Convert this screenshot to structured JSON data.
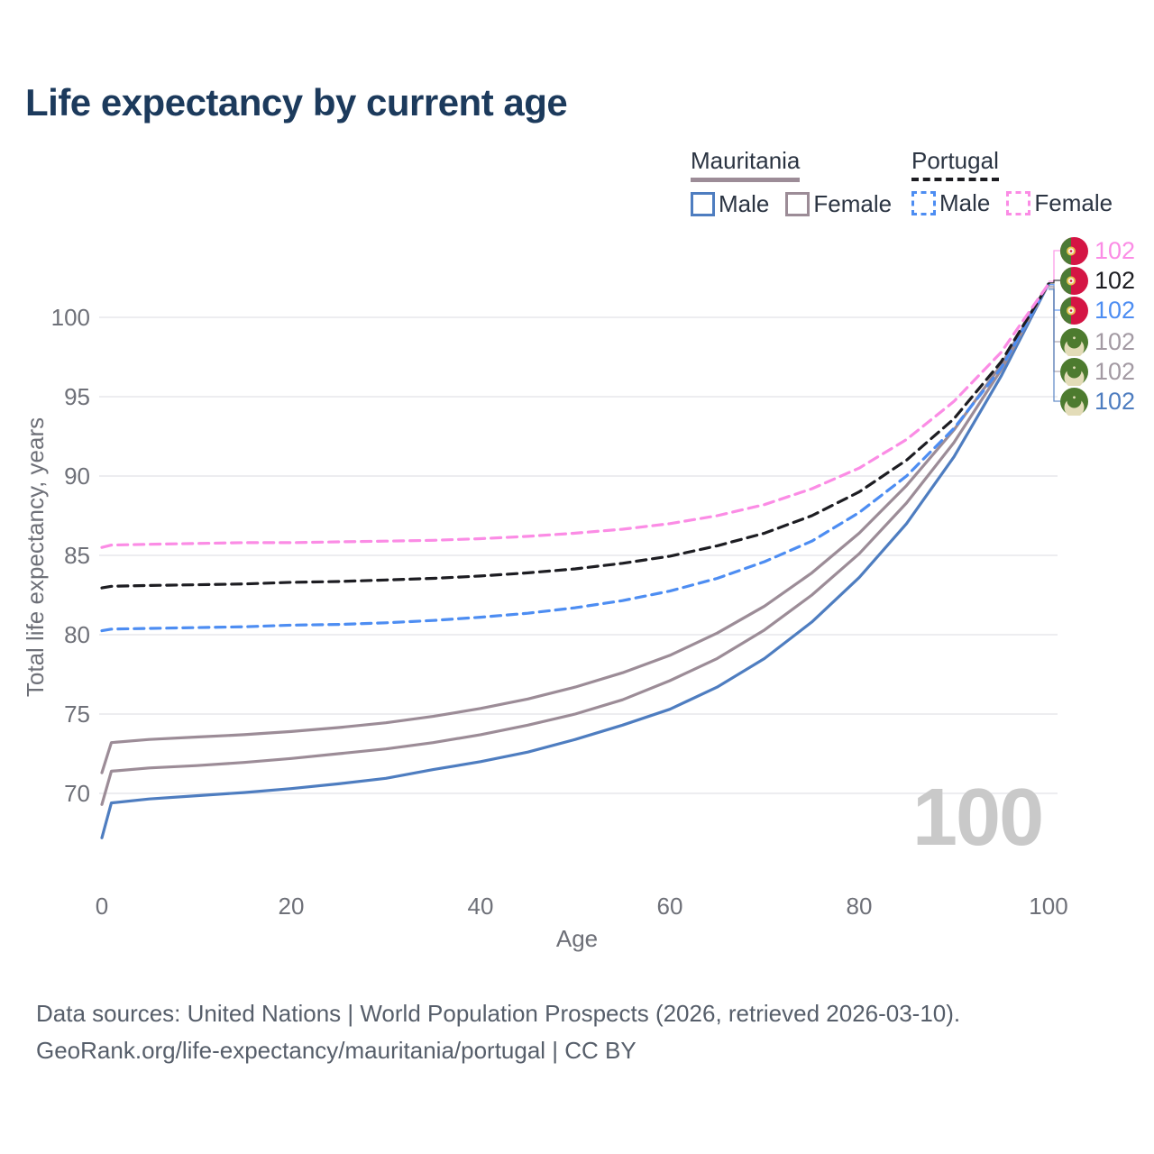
{
  "title": "Life expectancy by current age",
  "hover_watermark": "100",
  "legend": {
    "groups": [
      {
        "country": "Mauritania",
        "line_style": "solid",
        "underline_color": "#9c8c97",
        "items": [
          {
            "label": "Male",
            "color": "#4e7dc0"
          },
          {
            "label": "Female",
            "color": "#9c8c97"
          }
        ]
      },
      {
        "country": "Portugal",
        "line_style": "dashed",
        "underline_color": "#1d1d22",
        "items": [
          {
            "label": "Male",
            "color": "#4d8df2"
          },
          {
            "label": "Female",
            "color": "#fb8ce5"
          }
        ]
      }
    ]
  },
  "chart_data": {
    "type": "line",
    "title": "Life expectancy by current age",
    "xlabel": "Age",
    "ylabel": "Total life expectancy, years",
    "xlim": [
      0,
      100
    ],
    "ylim": [
      66,
      103
    ],
    "xticks": [
      0,
      20,
      40,
      60,
      80,
      100
    ],
    "yticks": [
      70,
      75,
      80,
      85,
      90,
      95,
      100
    ],
    "grid": "horizontal",
    "legend_position": "top-right",
    "x_ages": [
      0,
      1,
      5,
      10,
      15,
      20,
      25,
      30,
      35,
      40,
      45,
      50,
      55,
      60,
      65,
      70,
      75,
      80,
      85,
      90,
      95,
      100
    ],
    "series": [
      {
        "name": "Mauritania Male",
        "country": "Mauritania",
        "sex": "Male",
        "style": "solid",
        "color": "#4e7dc0",
        "end_value": 102,
        "values": [
          67.2,
          69.4,
          69.65,
          69.85,
          70.05,
          70.3,
          70.6,
          70.95,
          71.5,
          72.0,
          72.6,
          73.4,
          74.3,
          75.3,
          76.7,
          78.5,
          80.8,
          83.6,
          87.0,
          91.2,
          96.3,
          102.1
        ]
      },
      {
        "name": "Mauritania Both sexes",
        "country": "Mauritania",
        "sex": "Both sexes",
        "style": "solid",
        "color": "#9c8c97",
        "end_value": 102,
        "values": [
          69.3,
          71.4,
          71.6,
          71.75,
          71.95,
          72.2,
          72.5,
          72.8,
          73.2,
          73.7,
          74.3,
          75.0,
          75.9,
          77.1,
          78.5,
          80.3,
          82.5,
          85.1,
          88.3,
          92.1,
          96.7,
          102.1
        ]
      },
      {
        "name": "Mauritania Female",
        "country": "Mauritania",
        "sex": "Female",
        "style": "solid",
        "color": "#9c8c97",
        "end_value": 102,
        "values": [
          71.3,
          73.2,
          73.4,
          73.55,
          73.7,
          73.9,
          74.15,
          74.45,
          74.85,
          75.35,
          75.95,
          76.7,
          77.6,
          78.7,
          80.1,
          81.8,
          83.9,
          86.4,
          89.4,
          92.9,
          97.0,
          102.1
        ]
      },
      {
        "name": "Portugal Male",
        "country": "Portugal",
        "sex": "Male",
        "style": "dashed",
        "color": "#4d8df2",
        "end_value": 102,
        "values": [
          80.25,
          80.35,
          80.4,
          80.45,
          80.5,
          80.6,
          80.65,
          80.75,
          80.9,
          81.1,
          81.35,
          81.7,
          82.15,
          82.75,
          83.55,
          84.6,
          85.9,
          87.7,
          90.0,
          93.0,
          96.8,
          102.1
        ]
      },
      {
        "name": "Portugal Both sexes",
        "country": "Portugal",
        "sex": "Both sexes",
        "style": "dashed",
        "color": "#1d1d22",
        "end_value": 102,
        "values": [
          82.95,
          83.05,
          83.1,
          83.15,
          83.2,
          83.3,
          83.35,
          83.45,
          83.55,
          83.7,
          83.9,
          84.15,
          84.5,
          84.95,
          85.6,
          86.4,
          87.5,
          89.0,
          91.0,
          93.6,
          97.2,
          102.1
        ]
      },
      {
        "name": "Portugal Female",
        "country": "Portugal",
        "sex": "Female",
        "style": "dashed",
        "color": "#fb8ce5",
        "end_value": 102,
        "values": [
          85.5,
          85.65,
          85.7,
          85.75,
          85.8,
          85.8,
          85.85,
          85.9,
          85.95,
          86.05,
          86.2,
          86.4,
          86.65,
          87.0,
          87.5,
          88.2,
          89.2,
          90.5,
          92.3,
          94.7,
          97.8,
          102.1
        ]
      }
    ]
  },
  "end_labels": [
    {
      "value": "102",
      "color": "#fb8ce5",
      "flag": "portugal",
      "series": "Portugal Female"
    },
    {
      "value": "102",
      "color": "#1d1d22",
      "flag": "portugal",
      "series": "Portugal Both sexes"
    },
    {
      "value": "102",
      "color": "#4d8df2",
      "flag": "portugal",
      "series": "Portugal Male"
    },
    {
      "value": "102",
      "color": "#a39aa3",
      "flag": "mauritania",
      "series": "Mauritania Female"
    },
    {
      "value": "102",
      "color": "#a39aa3",
      "flag": "mauritania",
      "series": "Mauritania Both sexes"
    },
    {
      "value": "102",
      "color": "#4e7dc0",
      "flag": "mauritania",
      "series": "Mauritania Male"
    }
  ],
  "source": {
    "line1": "Data sources: United Nations | World Population Prospects (2026, retrieved 2026-03-10).",
    "line2": "GeoRank.org/life-expectancy/mauritania/portugal | CC BY"
  }
}
